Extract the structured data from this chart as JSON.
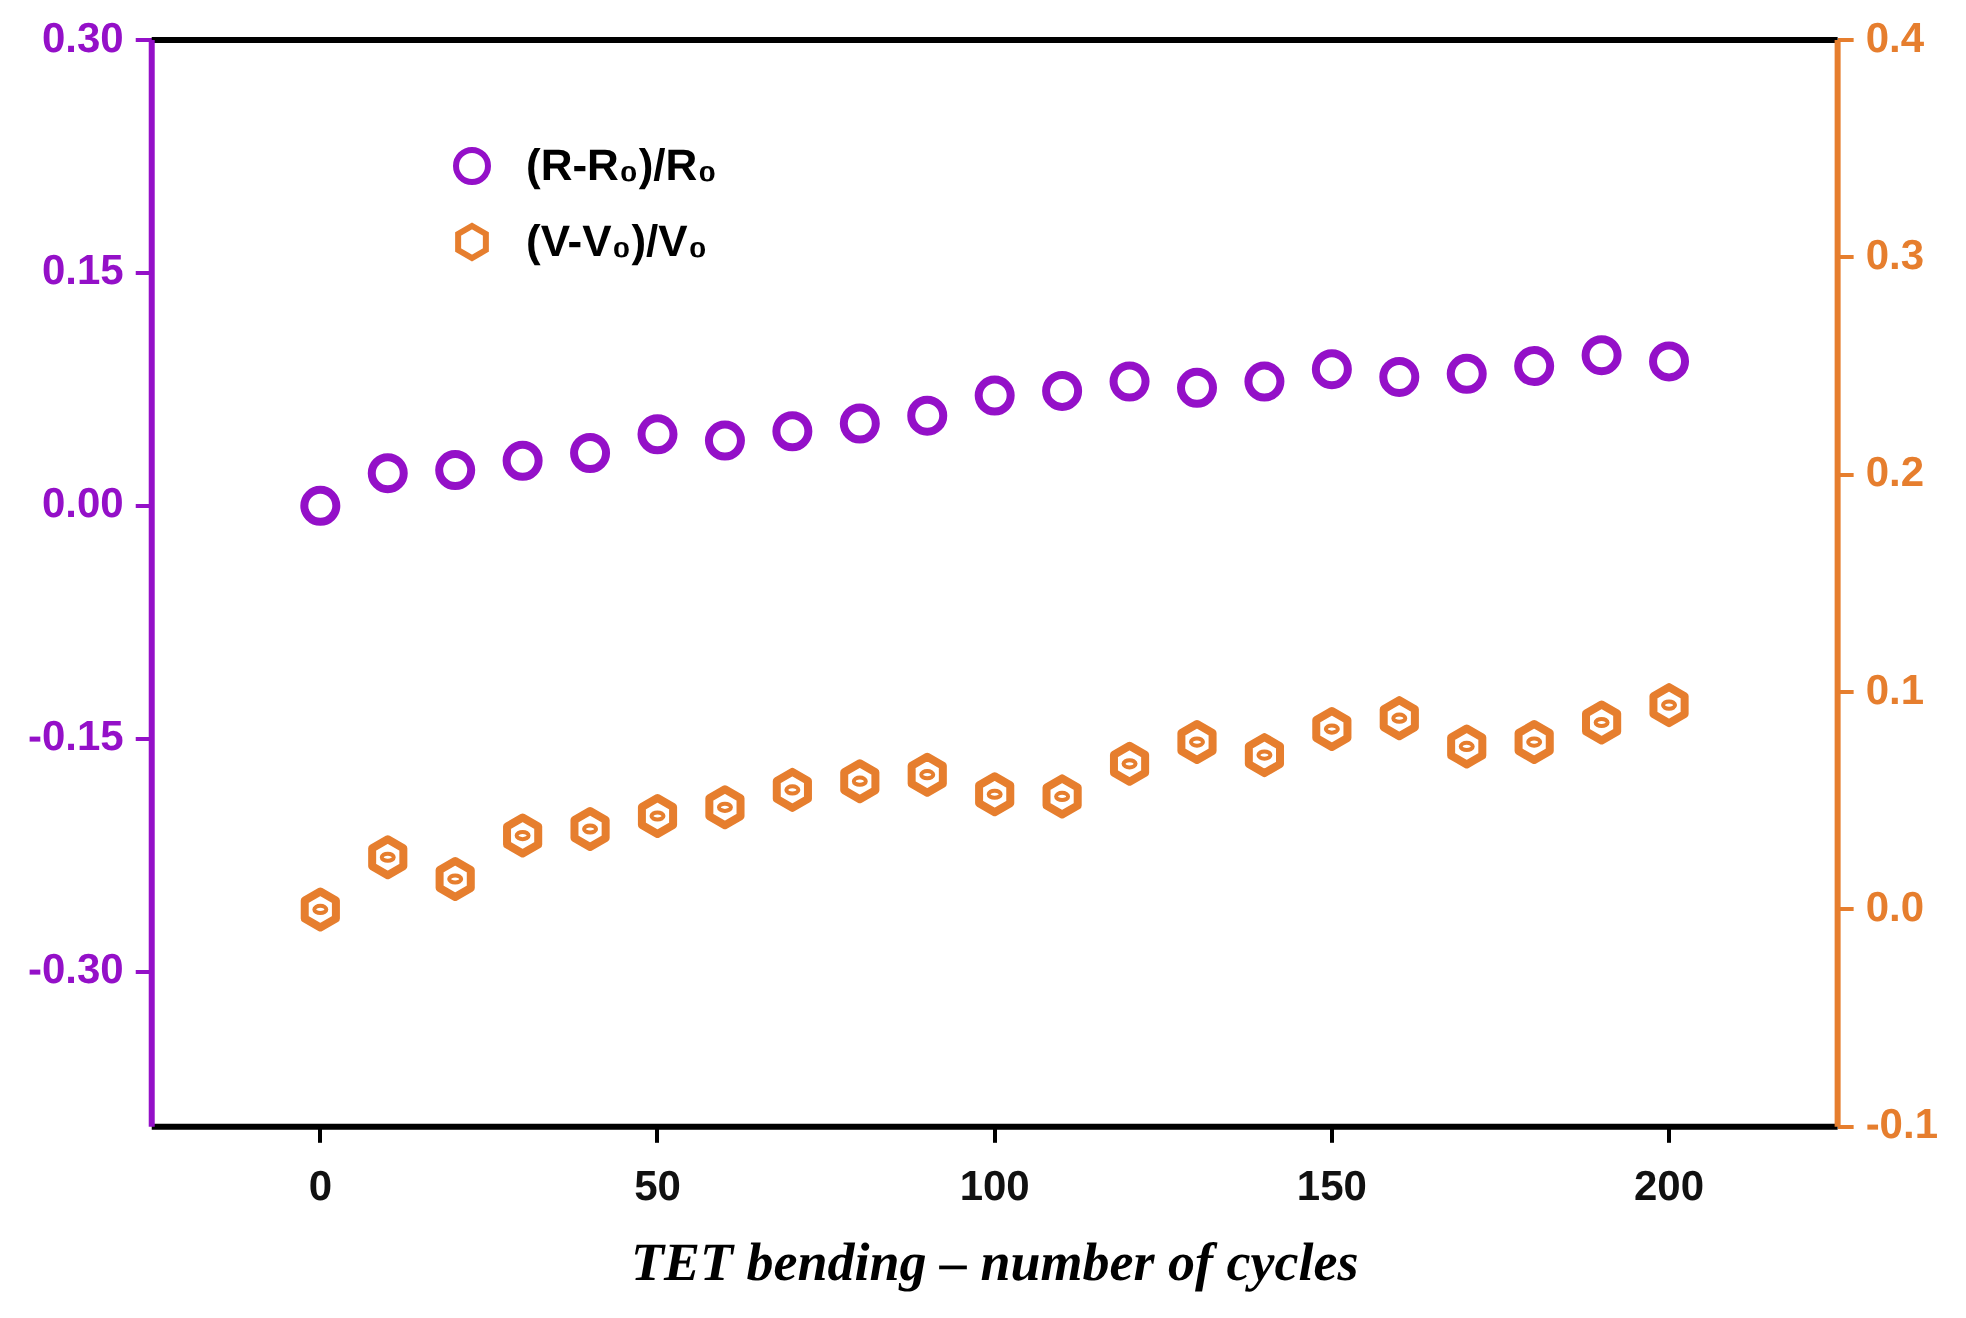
{
  "chart_data": {
    "type": "scatter",
    "xlabel": "TET bending – number of cycles",
    "x": [
      0,
      10,
      20,
      30,
      40,
      50,
      60,
      70,
      80,
      90,
      100,
      110,
      120,
      130,
      140,
      150,
      160,
      170,
      180,
      190,
      200
    ],
    "xlim": [
      -25,
      225
    ],
    "xticks": [
      0,
      50,
      100,
      150,
      200
    ],
    "ylim": [
      -0.4,
      0.3
    ],
    "yticks": [
      {
        "value": -0.3,
        "label": "-0.30"
      },
      {
        "value": -0.15,
        "label": "-0.15"
      },
      {
        "value": 0,
        "label": "0.00"
      },
      {
        "value": 0.15,
        "label": "0.15"
      },
      {
        "value": 0.3,
        "label": "0.30"
      }
    ],
    "y2lim": [
      -0.1,
      0.4
    ],
    "y2ticks": [
      {
        "value": -0.1,
        "label": "-0.1"
      },
      {
        "value": 0,
        "label": "0.0"
      },
      {
        "value": 0.1,
        "label": "0.1"
      },
      {
        "value": 0.2,
        "label": "0.2"
      },
      {
        "value": 0.3,
        "label": "0.3"
      },
      {
        "value": 0.4,
        "label": "0.4"
      }
    ],
    "legend": "top left",
    "grid": false,
    "series": [
      {
        "name": "(R-R₀)/R₀",
        "color": "#9410c8",
        "marker": "circle",
        "values": [
          0.0,
          0.021,
          0.023,
          0.029,
          0.034,
          0.046,
          0.042,
          0.048,
          0.053,
          0.058,
          0.071,
          0.074,
          0.08,
          0.076,
          0.08,
          0.088,
          0.083,
          0.085,
          0.09,
          0.097,
          0.093
        ]
      },
      {
        "name": "(V-V₀)/V₀",
        "color": "#e67e2e",
        "axis": "y2",
        "values": [
          0.0,
          0.024,
          0.014,
          0.034,
          0.037,
          0.043,
          0.047,
          0.055,
          0.059,
          0.062,
          0.053,
          0.052,
          0.067,
          0.077,
          0.071,
          0.083,
          0.088,
          0.075,
          0.077,
          0.086,
          0.094
        ]
      }
    ]
  }
}
